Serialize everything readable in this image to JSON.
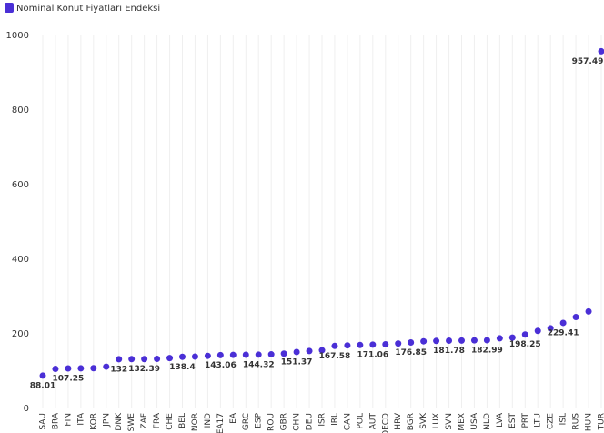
{
  "chart_data": {
    "type": "scatter",
    "series": [
      {
        "name": "Nominal Konut Fiyatları Endeksi",
        "color": "#4a2fd6",
        "values": [
          88.01,
          106,
          107.25,
          107.5,
          108,
          112,
          132,
          132.2,
          132.39,
          133,
          135,
          138.4,
          139,
          141,
          143.06,
          143.5,
          144,
          144.32,
          145,
          147,
          151.37,
          154,
          156,
          167.58,
          169,
          170,
          171.06,
          172,
          174,
          176.85,
          180,
          181,
          181.78,
          182,
          182.5,
          182.99,
          188,
          190,
          198.25,
          208,
          215,
          229.41,
          245,
          260,
          957.49
        ],
        "value_labels": [
          "88.01",
          null,
          "107.25",
          null,
          null,
          null,
          "132",
          null,
          "132.39",
          null,
          null,
          "138.4",
          null,
          null,
          "143.06",
          null,
          null,
          "144.32",
          null,
          null,
          "151.37",
          null,
          null,
          "167.58",
          null,
          null,
          "171.06",
          null,
          null,
          "176.85",
          null,
          null,
          "181.78",
          null,
          null,
          "182.99",
          null,
          null,
          "198.25",
          null,
          null,
          "229.41",
          null,
          null,
          "957.49"
        ]
      }
    ],
    "categories": [
      "SAU",
      "BRA",
      "FIN",
      "ITA",
      "KOR",
      "JPN",
      "DNK",
      "SWE",
      "ZAF",
      "FRA",
      "CHE",
      "BEL",
      "NOR",
      "IND",
      "EA17",
      "EA",
      "GRC",
      "ESP",
      "ROU",
      "GBR",
      "CHN",
      "DEU",
      "ISR",
      "IRL",
      "CAN",
      "POL",
      "AUT",
      "OECD",
      "HRV",
      "BGR",
      "SVK",
      "LUX",
      "SVN",
      "MEX",
      "USA",
      "NLD",
      "LVA",
      "EST",
      "PRT",
      "LTU",
      "CZE",
      "ISL",
      "RUS",
      "HUN",
      "TUR"
    ],
    "ylim": [
      0,
      1000
    ],
    "yticks": [
      0,
      200,
      400,
      600,
      800,
      1000
    ],
    "grid": true,
    "legend": "top-left"
  }
}
